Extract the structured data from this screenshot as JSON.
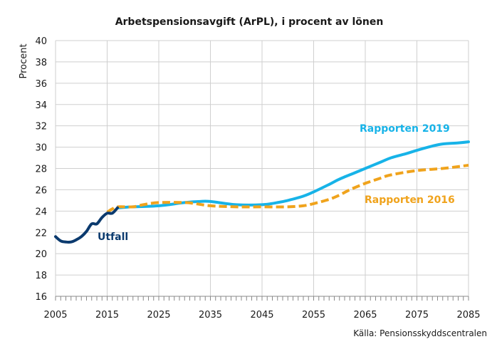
{
  "chart_data": {
    "type": "line",
    "title": "Arbetspensionsavgift (ArPL), i procent av lönen",
    "ylabel": "Procent",
    "xlabel": "",
    "source": "Källa: Pensionsskyddscentralen",
    "xlim": [
      2005,
      2085
    ],
    "ylim": [
      16,
      40
    ],
    "xticks": [
      "2005",
      "2015",
      "2025",
      "2035",
      "2045",
      "2055",
      "2065",
      "2075",
      "2085"
    ],
    "yticks": [
      "16",
      "18",
      "20",
      "22",
      "24",
      "26",
      "28",
      "30",
      "32",
      "34",
      "36",
      "38",
      "40"
    ],
    "grid": true,
    "series": [
      {
        "name": "Utfall",
        "color": "#0b3a6e",
        "style": "solid",
        "x": [
          2005,
          2006,
          2007,
          2008,
          2009,
          2010,
          2011,
          2012,
          2013,
          2014,
          2015,
          2016,
          2017
        ],
        "y": [
          21.6,
          21.2,
          21.1,
          21.1,
          21.3,
          21.6,
          22.1,
          22.8,
          22.8,
          23.4,
          23.8,
          23.8,
          24.3
        ]
      },
      {
        "name": "Rapporten 2016",
        "color": "#f0a31c",
        "style": "dashed",
        "x": [
          2015,
          2016,
          2017,
          2020,
          2022,
          2025,
          2030,
          2032,
          2035,
          2040,
          2045,
          2050,
          2053,
          2055,
          2058,
          2060,
          2062,
          2065,
          2068,
          2070,
          2075,
          2080,
          2085
        ],
        "y": [
          23.9,
          24.2,
          24.4,
          24.4,
          24.6,
          24.8,
          24.8,
          24.7,
          24.5,
          24.4,
          24.4,
          24.4,
          24.5,
          24.7,
          25.1,
          25.5,
          26.0,
          26.6,
          27.1,
          27.4,
          27.8,
          28.0,
          28.3
        ]
      },
      {
        "name": "Rapporten 2019",
        "color": "#17b3e8",
        "style": "solid",
        "x": [
          2017,
          2020,
          2025,
          2030,
          2033,
          2035,
          2040,
          2045,
          2048,
          2050,
          2053,
          2055,
          2058,
          2060,
          2063,
          2065,
          2068,
          2070,
          2073,
          2075,
          2078,
          2080,
          2083,
          2085
        ],
        "y": [
          24.3,
          24.4,
          24.5,
          24.8,
          24.9,
          24.9,
          24.6,
          24.6,
          24.8,
          25.0,
          25.4,
          25.8,
          26.5,
          27.0,
          27.6,
          28.0,
          28.6,
          29.0,
          29.4,
          29.7,
          30.1,
          30.3,
          30.4,
          30.5
        ]
      }
    ]
  }
}
